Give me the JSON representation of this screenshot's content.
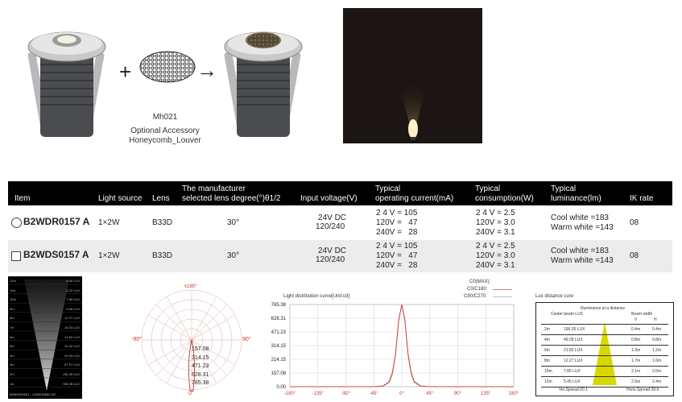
{
  "accessory": {
    "code": "Mh021",
    "line1": "Optional Accessory",
    "line2": "Honeycomb_Louver"
  },
  "symbols": {
    "plus": "+",
    "arrow": "→"
  },
  "table": {
    "headers": {
      "item": "Item",
      "light_source": "Light source",
      "lens": "Lens",
      "degree_l1": "The manufacturer",
      "degree_l2": "selected lens degree(°)θ1/2",
      "input": "Input voltage(V)",
      "current_l1": "Typical",
      "current_l2": "operating current(mA)",
      "consumption_l1": "Typical",
      "consumption_l2": "consumption(W)",
      "luminance_l1": "Typical",
      "luminance_l2": "luminance(lm)",
      "ik": "IK rate"
    },
    "rows": [
      {
        "name": "B2WDR0157 A",
        "source": "1×2W",
        "lens": "B33D",
        "degree": "30°",
        "input1": "24V DC",
        "input2": "120/240",
        "cur1": "2 4 V = 105",
        "cur2": "120V =   47",
        "cur3": "240V =   28",
        "con1": "2 4 V = 2.5",
        "con2": "120V = 3.0",
        "con3": "240V = 3.1",
        "lum1": "Cool white =183",
        "lum2": "Warm white =143",
        "ik": "08"
      },
      {
        "name": "B2WDS0157 A",
        "source": "1×2W",
        "lens": "B33D",
        "degree": "30°",
        "input1": "24V DC",
        "input2": "120/240",
        "cur1": "2 4 V = 105",
        "cur2": "120V =   47",
        "cur3": "240V =   28",
        "con1": "2 4 V = 2.5",
        "con2": "120V = 3.0",
        "con3": "240V = 3.1",
        "lum1": "Cool white =183",
        "lum2": "Warm white =143",
        "ik": "08"
      }
    ]
  },
  "beam_panel": {
    "rows": [
      "12m",
      "11m",
      "10m",
      "9m",
      "8m",
      "7m",
      "6m",
      "5m",
      "4m",
      "3m",
      "2m",
      "1m"
    ],
    "values": [
      "5.45 LUX",
      "6.22 LUX",
      "7.85 LUX",
      "9.66 LUX",
      "12.27 LUX",
      "16.03 LUX",
      "21.82 LUX",
      "31.42 LUX",
      "49.09 LUX",
      "87.27 LUX",
      "196.35 LUX",
      "785.38 LUX"
    ],
    "footer": "B2WCR/0157 - 1X2W-B33D-20°"
  },
  "polar": {
    "top": "±180°",
    "left": "-90°",
    "right": "90°",
    "bottom": "0°",
    "rings": [
      "157.08",
      "314.15",
      "471.23",
      "628.31",
      "785.38"
    ]
  },
  "chart_data": {
    "type": "line",
    "title": "Light distribution curve[Unit:cd]",
    "legend": [
      "C0(MAX):",
      "C0/C180:",
      "C90/C270:"
    ],
    "x_ticks": [
      "-180°",
      "-135°",
      "-90°",
      "-45°",
      "0°",
      "45°",
      "90°",
      "135°",
      "180°"
    ],
    "y_ticks": [
      "785.38",
      "628.31",
      "471.23",
      "314.15",
      "214.15",
      "157.08",
      "0.00"
    ],
    "xlim": [
      -180,
      180
    ],
    "ylim": [
      0,
      785.38
    ],
    "series": [
      {
        "name": "C0/C180:",
        "x": [
          -180,
          -45,
          -30,
          -20,
          -15,
          -10,
          -5,
          0,
          5,
          10,
          15,
          20,
          30,
          45,
          180
        ],
        "values": [
          0,
          0,
          5,
          40,
          120,
          300,
          620,
          785,
          620,
          300,
          120,
          40,
          5,
          0,
          0
        ]
      },
      {
        "name": "C90/C270:",
        "x": [
          -180,
          -45,
          -30,
          -20,
          -15,
          -10,
          -5,
          0,
          5,
          10,
          15,
          20,
          30,
          45,
          180
        ],
        "values": [
          0,
          0,
          8,
          50,
          140,
          320,
          640,
          785,
          640,
          320,
          140,
          50,
          8,
          0,
          0
        ]
      }
    ]
  },
  "lux": {
    "title": "Lux distance cure",
    "heading": "Illuminance at a distance",
    "col1": "Center beam LUX",
    "col2": "Beam width",
    "v": "V",
    "h": "H",
    "rows": [
      {
        "d": "2m",
        "lux": "196.35 LUX",
        "v": "0.4m",
        "h": "0.4m"
      },
      {
        "d": "4m",
        "lux": "49.09 LUX",
        "v": "0.8m",
        "h": "0.8m"
      },
      {
        "d": "6m",
        "lux": "21.82 LUX",
        "v": "1.3m",
        "h": "1.2m"
      },
      {
        "d": "8m",
        "lux": "12.27 LUX",
        "v": "1.7m",
        "h": "1.6m"
      },
      {
        "d": "10m",
        "lux": "7.85 LUX",
        "v": "2.1m",
        "h": "2.0m"
      },
      {
        "d": "12m",
        "lux": "5.45 LUX",
        "v": "2.5m",
        "h": "2.4m"
      }
    ],
    "ver": "Ver.Spread:20.1",
    "hor": "Horiz.Spread:20.6"
  }
}
